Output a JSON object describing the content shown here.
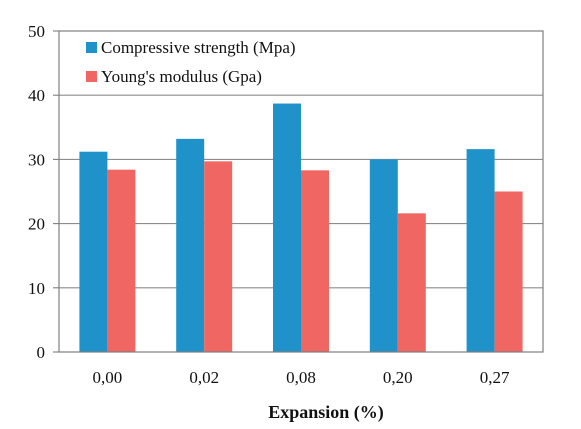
{
  "chart_data": {
    "type": "bar",
    "title": "",
    "xlabel": "Expansion (%)",
    "ylabel": "",
    "categories": [
      "0,00",
      "0,02",
      "0,08",
      "0,20",
      "0,27"
    ],
    "series": [
      {
        "name": "Compressive strength (Mpa)",
        "color": "#1f92c9",
        "values": [
          31.2,
          33.2,
          38.7,
          30.0,
          31.6
        ]
      },
      {
        "name": "Young's modulus (Gpa)",
        "color": "#f06663",
        "values": [
          28.4,
          29.7,
          28.3,
          21.6,
          25.0
        ]
      }
    ],
    "ylim": [
      0,
      50
    ],
    "yticks": [
      "0",
      "10",
      "20",
      "30",
      "40",
      "50"
    ],
    "grid": true,
    "legend_position": "top-left"
  }
}
